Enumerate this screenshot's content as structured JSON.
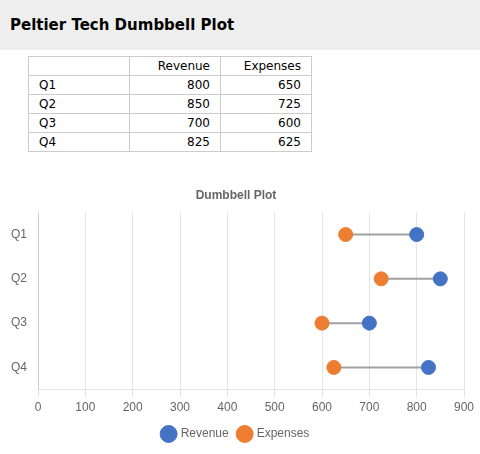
{
  "chart_data": {
    "type": "dumbbell",
    "title": "Peltier Tech Dumbbell Plot",
    "subtitle": "Dumbbell Plot",
    "orientation": "horizontal",
    "categories": [
      "Q1",
      "Q2",
      "Q3",
      "Q4"
    ],
    "series": [
      {
        "name": "Revenue",
        "color": "#4472C4",
        "values": [
          800,
          850,
          700,
          825
        ]
      },
      {
        "name": "Expenses",
        "color": "#ED7D31",
        "values": [
          650,
          725,
          600,
          625
        ]
      }
    ],
    "color": "#A0A0A0",
    "xlim": [
      0,
      900
    ],
    "xticks": [
      0,
      100,
      200,
      300,
      400,
      500,
      600,
      700,
      800,
      900
    ],
    "grid": true,
    "legend": "bottom"
  }
}
